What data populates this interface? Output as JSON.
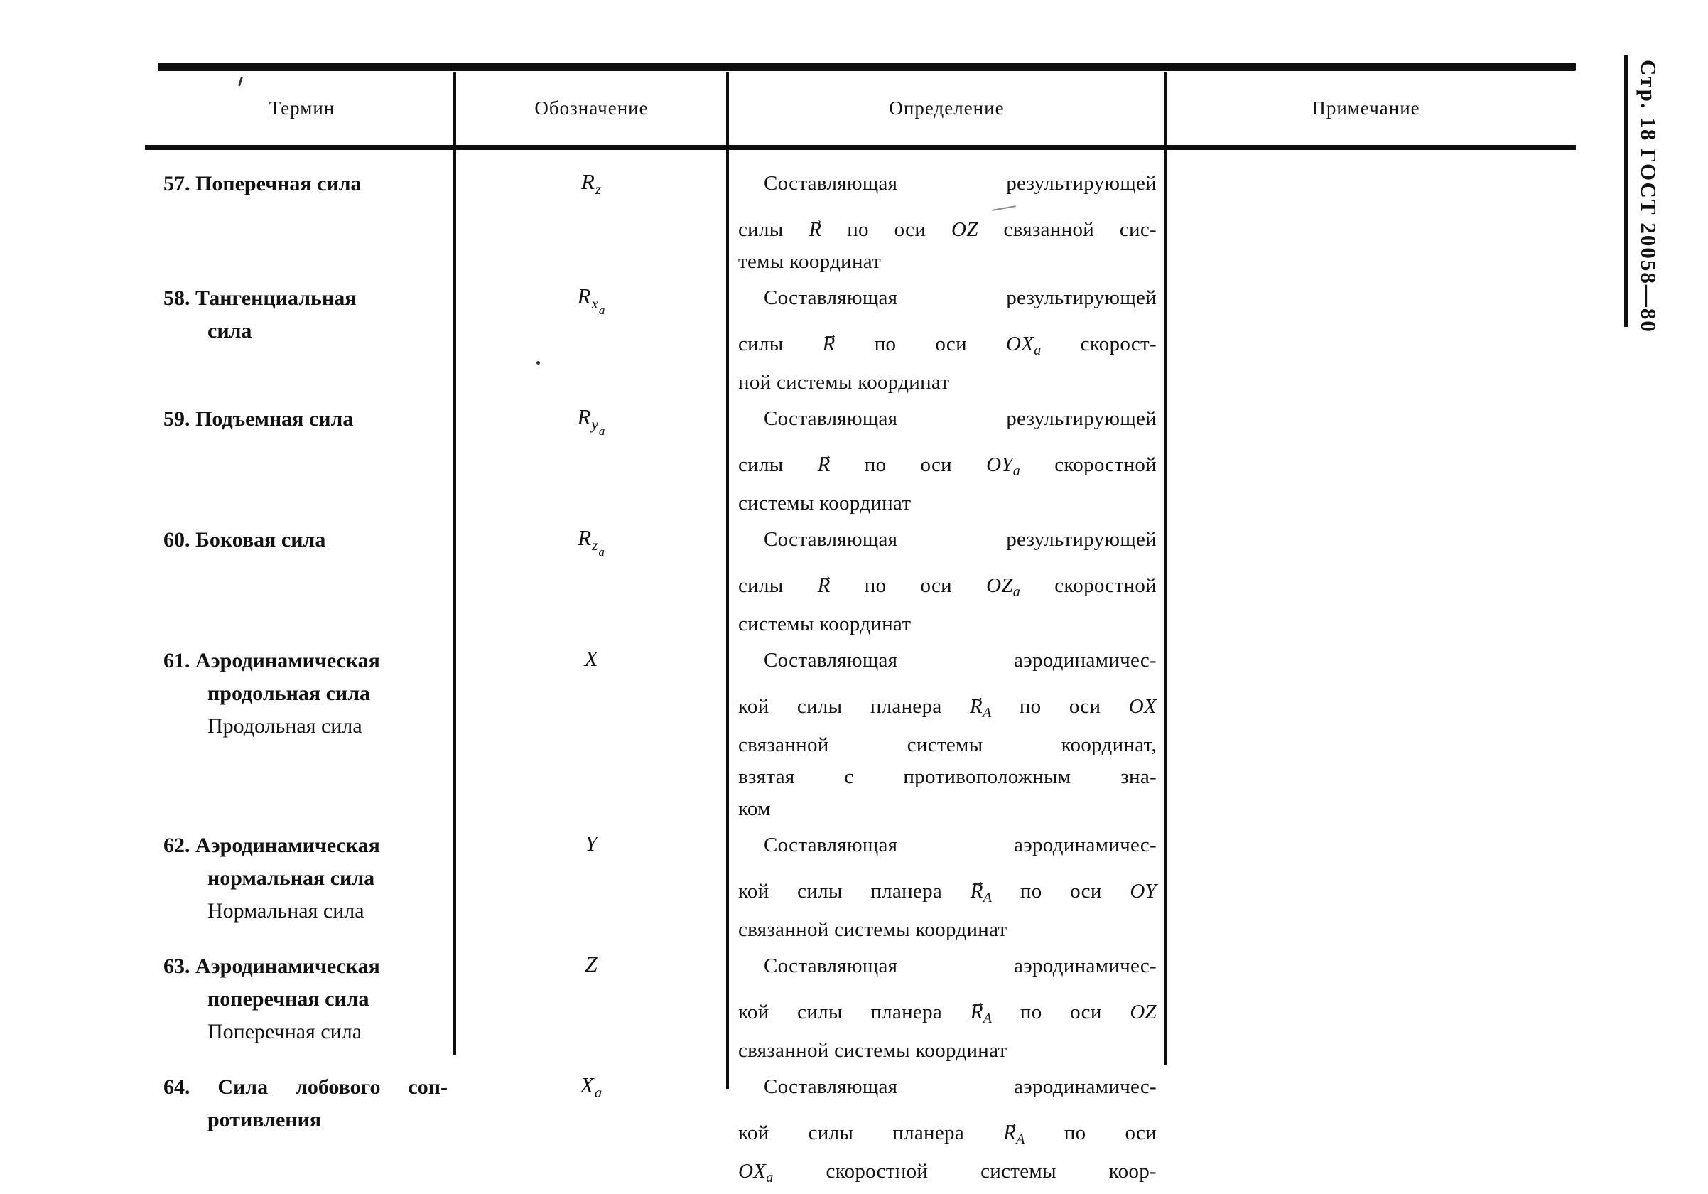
{
  "colors": {
    "paper": "#ffffff",
    "ink": "#121212"
  },
  "page": {
    "margin_label": "Стр. 18 ГОСТ 20058—80"
  },
  "table": {
    "headers": [
      {
        "label": "Термин"
      },
      {
        "label": "Обозначение"
      },
      {
        "label": "Определение"
      },
      {
        "label": "Примечание"
      }
    ],
    "rows": [
      {
        "term_lines": [
          {
            "text": "57. Поперечная сила",
            "bold": true
          }
        ],
        "symbol": {
          "base": "R",
          "sub": "z"
        },
        "def_lines": [
          {
            "first": true,
            "segs": [
              {
                "t": "Составляющая результирующей"
              }
            ]
          },
          {
            "segs": [
              {
                "t": "силы "
              },
              {
                "vec": "R"
              },
              {
                "t": " по оси "
              },
              {
                "m": "OZ"
              },
              {
                "t": " связанной сис-"
              }
            ]
          },
          {
            "end": true,
            "segs": [
              {
                "t": "темы координат"
              }
            ]
          }
        ],
        "note": ""
      },
      {
        "term_lines": [
          {
            "text": "58. Тангенциальная",
            "bold": true
          },
          {
            "text": "сила",
            "bold": true,
            "indent": true
          }
        ],
        "symbol": {
          "base": "R",
          "sub": "x",
          "subsub": "a"
        },
        "def_lines": [
          {
            "first": true,
            "segs": [
              {
                "t": "Составляющая результирующей"
              }
            ]
          },
          {
            "segs": [
              {
                "t": "силы "
              },
              {
                "vec": "R"
              },
              {
                "t": " по оси "
              },
              {
                "ms": [
                  "OX",
                  "a"
                ]
              },
              {
                "t": " скорост-"
              }
            ]
          },
          {
            "end": true,
            "segs": [
              {
                "t": "ной системы координат"
              }
            ]
          }
        ],
        "note": ""
      },
      {
        "term_lines": [
          {
            "text": "59. Подъемная сила",
            "bold": true
          }
        ],
        "symbol": {
          "base": "R",
          "sub": "y",
          "subsub": "a"
        },
        "def_lines": [
          {
            "first": true,
            "segs": [
              {
                "t": "Составляющая результирующей"
              }
            ]
          },
          {
            "segs": [
              {
                "t": "силы "
              },
              {
                "vec": "R"
              },
              {
                "t": " по оси "
              },
              {
                "ms": [
                  "OY",
                  "a"
                ]
              },
              {
                "t": " скоростной"
              }
            ]
          },
          {
            "end": true,
            "segs": [
              {
                "t": "системы координат"
              }
            ]
          }
        ],
        "note": ""
      },
      {
        "term_lines": [
          {
            "text": "60. Боковая сила",
            "bold": true
          }
        ],
        "symbol": {
          "base": "R",
          "sub": "z",
          "subsub": "a"
        },
        "def_lines": [
          {
            "first": true,
            "segs": [
              {
                "t": "Составляющая результирующей"
              }
            ]
          },
          {
            "segs": [
              {
                "t": "силы "
              },
              {
                "vec": "R"
              },
              {
                "t": " по оси "
              },
              {
                "ms": [
                  "OZ",
                  "a"
                ]
              },
              {
                "t": " скоростной"
              }
            ]
          },
          {
            "end": true,
            "segs": [
              {
                "t": "системы координат"
              }
            ]
          }
        ],
        "note": ""
      },
      {
        "term_lines": [
          {
            "text": "61. Аэродинамическая",
            "bold": true
          },
          {
            "text": "продольная сила",
            "bold": true,
            "indent": true
          },
          {
            "text": "Продольная сила",
            "indent": true
          }
        ],
        "symbol": {
          "base": "X"
        },
        "def_lines": [
          {
            "first": true,
            "segs": [
              {
                "t": "Составляющая аэродинамичес-"
              }
            ]
          },
          {
            "segs": [
              {
                "t": "кой силы планера "
              },
              {
                "vecs": [
                  "R",
                  "A"
                ]
              },
              {
                "t": " по оси "
              },
              {
                "m": "OX"
              }
            ]
          },
          {
            "segs": [
              {
                "t": "связанной системы координат,"
              }
            ]
          },
          {
            "segs": [
              {
                "t": "взятая с противоположным зна-"
              }
            ]
          },
          {
            "end": true,
            "segs": [
              {
                "t": "ком"
              }
            ]
          }
        ],
        "note": ""
      },
      {
        "term_lines": [
          {
            "text": "62. Аэродинамическая",
            "bold": true
          },
          {
            "text": "нормальная сила",
            "bold": true,
            "indent": true
          },
          {
            "text": "Нормальная сила",
            "indent": true
          }
        ],
        "symbol": {
          "base": "Y"
        },
        "def_lines": [
          {
            "first": true,
            "segs": [
              {
                "t": "Составляющая аэродинамичес-"
              }
            ]
          },
          {
            "segs": [
              {
                "t": "кой силы планера "
              },
              {
                "vecs": [
                  "R",
                  "A"
                ]
              },
              {
                "t": " по оси "
              },
              {
                "m": "OY"
              }
            ]
          },
          {
            "end": true,
            "segs": [
              {
                "t": "связанной системы координат"
              }
            ]
          }
        ],
        "note": ""
      },
      {
        "term_lines": [
          {
            "text": "63. Аэродинамическая",
            "bold": true
          },
          {
            "text": "поперечная сила",
            "bold": true,
            "indent": true
          },
          {
            "text": "Поперечная сила",
            "indent": true
          }
        ],
        "symbol": {
          "base": "Z"
        },
        "def_lines": [
          {
            "first": true,
            "segs": [
              {
                "t": "Составляющая аэродинамичес-"
              }
            ]
          },
          {
            "segs": [
              {
                "t": "кой силы планера "
              },
              {
                "vecs": [
                  "R",
                  "A"
                ]
              },
              {
                "t": " по оси "
              },
              {
                "m": "OZ"
              }
            ]
          },
          {
            "end": true,
            "segs": [
              {
                "t": "связанной системы координат"
              }
            ]
          }
        ],
        "note": ""
      },
      {
        "term_lines": [
          {
            "text": "64. Сила лобового соп-",
            "bold": true,
            "just": true
          },
          {
            "text": "ротивления",
            "bold": true,
            "indent": true
          }
        ],
        "symbol": {
          "base": "X",
          "sub": "a"
        },
        "def_lines": [
          {
            "first": true,
            "segs": [
              {
                "t": "Составляющая аэродинамичес-"
              }
            ]
          },
          {
            "segs": [
              {
                "t": "кой силы планера "
              },
              {
                "vecs": [
                  "R",
                  "A"
                ]
              },
              {
                "t": " по оси"
              }
            ]
          },
          {
            "segs": [
              {
                "ms": [
                  "OX",
                  "a"
                ]
              },
              {
                "t": " скоростной системы коор-"
              }
            ]
          }
        ],
        "note": ""
      }
    ]
  }
}
